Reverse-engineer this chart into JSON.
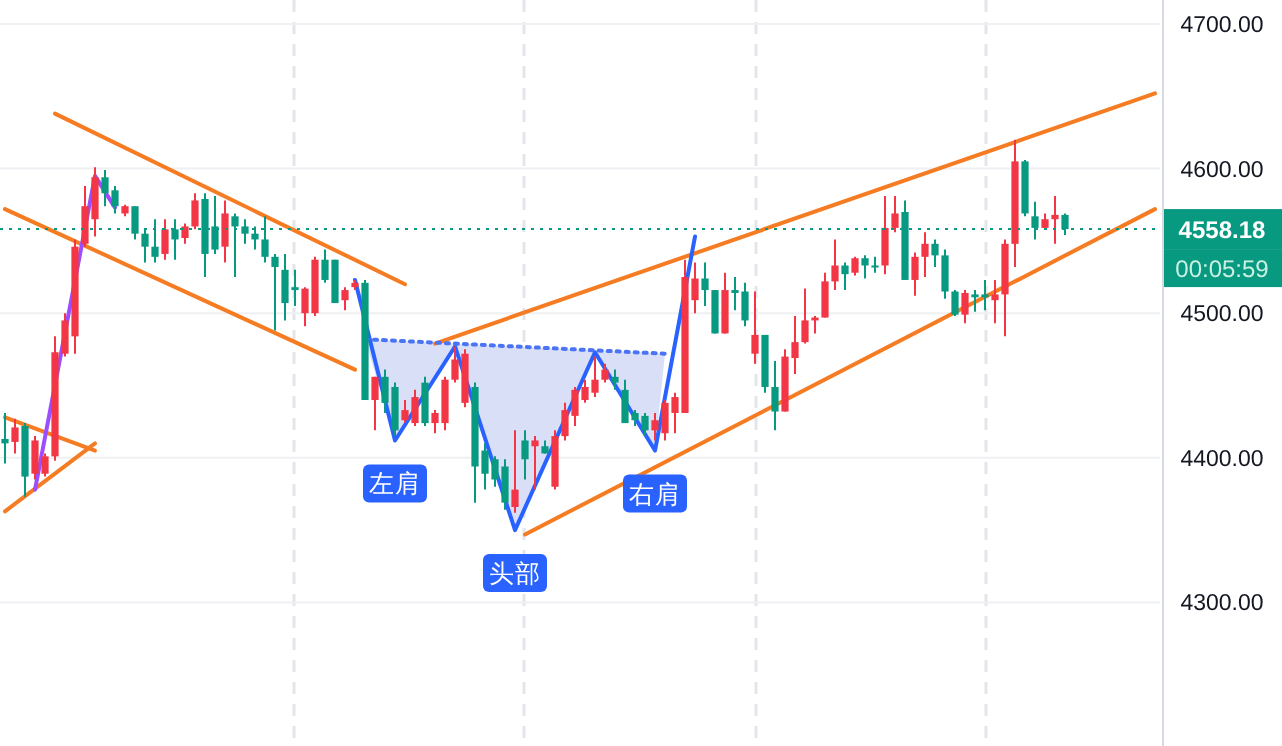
{
  "chart_data": {
    "type": "candlestick",
    "categories": [
      null,
      null,
      null,
      null,
      null,
      null,
      null,
      null,
      null,
      null,
      null,
      null,
      null,
      null,
      null,
      null,
      null,
      null,
      null,
      null,
      null,
      null,
      null,
      null,
      null,
      null,
      null,
      null,
      null,
      null,
      null,
      null,
      null,
      null,
      null,
      null,
      null,
      null,
      null,
      null,
      null,
      null,
      null,
      null,
      null,
      null,
      null,
      null,
      null,
      null,
      null,
      null,
      null,
      null,
      null,
      null,
      null,
      null,
      null,
      null,
      null,
      null,
      null,
      null,
      null,
      null,
      null,
      null,
      null,
      null,
      null,
      null,
      null,
      null,
      null,
      null,
      null,
      null,
      null,
      null,
      null,
      null,
      null,
      null,
      null,
      null,
      null,
      null,
      null,
      null,
      null,
      null,
      null,
      null,
      null,
      null,
      null,
      null,
      null,
      null,
      null,
      null,
      null,
      null,
      null,
      null,
      null,
      null,
      null,
      null,
      null,
      null,
      null,
      null,
      null,
      null
    ],
    "ohlc": [
      [
        4413,
        4431,
        4396,
        4410
      ],
      [
        4411,
        4427,
        4403,
        4421
      ],
      [
        4422,
        4424,
        4373,
        4387
      ],
      [
        4389,
        4415,
        4385,
        4412
      ],
      [
        4389,
        4403,
        4387,
        4401
      ],
      [
        4401,
        4484,
        4398,
        4473
      ],
      [
        4472,
        4500,
        4470,
        4495
      ],
      [
        4484,
        4551,
        4472,
        4546
      ],
      [
        4548,
        4588,
        4546,
        4574
      ],
      [
        4565,
        4601,
        4553,
        4594
      ],
      [
        4594,
        4599,
        4574,
        4583
      ],
      [
        4585,
        4588,
        4569,
        4574
      ],
      [
        4569,
        4575,
        4567,
        4574
      ],
      [
        4574,
        4574,
        4551,
        4555
      ],
      [
        4555,
        4558,
        4535,
        4546
      ],
      [
        4546,
        4565,
        4535,
        4539
      ],
      [
        4541,
        4565,
        4537,
        4558
      ],
      [
        4558,
        4565,
        4537,
        4551
      ],
      [
        4552,
        4562,
        4548,
        4560
      ],
      [
        4560,
        4583,
        4558,
        4578
      ],
      [
        4579,
        4583,
        4525,
        4541
      ],
      [
        4560,
        4581,
        4541,
        4544
      ],
      [
        4546,
        4578,
        4535,
        4569
      ],
      [
        4567,
        4569,
        4525,
        4560
      ],
      [
        4560,
        4565,
        4548,
        4555
      ],
      [
        4555,
        4560,
        4544,
        4551
      ],
      [
        4551,
        4567,
        4535,
        4539
      ],
      [
        4539,
        4541,
        4488,
        4532
      ],
      [
        4530,
        4541,
        4495,
        4507
      ],
      [
        4518,
        4530,
        4505,
        4516
      ],
      [
        4500,
        4518,
        4491,
        4517
      ],
      [
        4500,
        4539,
        4498,
        4537
      ],
      [
        4537,
        4544,
        4521,
        4523
      ],
      [
        4537,
        4537,
        4507,
        4507
      ],
      [
        4509,
        4518,
        4502,
        4516
      ],
      [
        4518,
        4523,
        4516,
        4521
      ],
      [
        4521,
        4523,
        4440,
        4440
      ],
      [
        4440,
        4456,
        4419,
        4456
      ],
      [
        4456,
        4461,
        4431,
        4438
      ],
      [
        4449,
        4452,
        4415,
        4419
      ],
      [
        4426,
        4440,
        4424,
        4433
      ],
      [
        4424,
        4447,
        4422,
        4442
      ],
      [
        4452,
        4456,
        4422,
        4424
      ],
      [
        4424,
        4433,
        4417,
        4431
      ],
      [
        4424,
        4456,
        4419,
        4454
      ],
      [
        4454,
        4477,
        4452,
        4468
      ],
      [
        4438,
        4475,
        4435,
        4472
      ],
      [
        4449,
        4452,
        4369,
        4394
      ],
      [
        4405,
        4410,
        4378,
        4389
      ],
      [
        4399,
        4401,
        4380,
        4385
      ],
      [
        4394,
        4399,
        4364,
        4369
      ],
      [
        4366,
        4419,
        4362,
        4378
      ],
      [
        4412,
        4419,
        4385,
        4399
      ],
      [
        4408,
        4415,
        4378,
        4412
      ],
      [
        4408,
        4412,
        4403,
        4403
      ],
      [
        4380,
        4419,
        4378,
        4415
      ],
      [
        4415,
        4438,
        4412,
        4433
      ],
      [
        4429,
        4449,
        4422,
        4447
      ],
      [
        4440,
        4454,
        4438,
        4449
      ],
      [
        4445,
        4470,
        4442,
        4454
      ],
      [
        4454,
        4465,
        4452,
        4461
      ],
      [
        4456,
        4461,
        4447,
        4452
      ],
      [
        4447,
        4454,
        4424,
        4424
      ],
      [
        4431,
        4433,
        4422,
        4426
      ],
      [
        4429,
        4431,
        4415,
        4419
      ],
      [
        4419,
        4431,
        4412,
        4426
      ],
      [
        4417,
        4440,
        4412,
        4438
      ],
      [
        4431,
        4445,
        4417,
        4442
      ],
      [
        4431,
        4537,
        4431,
        4525
      ],
      [
        4509,
        4535,
        4500,
        4524
      ],
      [
        4524,
        4535,
        4505,
        4516
      ],
      [
        4516,
        4516,
        4486,
        4486
      ],
      [
        4486,
        4528,
        4486,
        4516
      ],
      [
        4516,
        4525,
        4502,
        4514
      ],
      [
        4515,
        4521,
        4491,
        4495
      ],
      [
        4472,
        4515,
        4465,
        4485
      ],
      [
        4485,
        4485,
        4445,
        4449
      ],
      [
        4449,
        4467,
        4419,
        4432
      ],
      [
        4432,
        4475,
        4432,
        4470
      ],
      [
        4469,
        4498,
        4458,
        4480
      ],
      [
        4480,
        4517,
        4479,
        4495
      ],
      [
        4495,
        4498,
        4486,
        4497
      ],
      [
        4497,
        4528,
        4497,
        4522
      ],
      [
        4522,
        4551,
        4516,
        4533
      ],
      [
        4533,
        4535,
        4516,
        4527
      ],
      [
        4528,
        4539,
        4526,
        4538
      ],
      [
        4538,
        4540,
        4524,
        4533
      ],
      [
        4533,
        4539,
        4528,
        4532
      ],
      [
        4533,
        4581,
        4527,
        4559
      ],
      [
        4559,
        4581,
        4556,
        4569
      ],
      [
        4570,
        4578,
        4523,
        4523
      ],
      [
        4523,
        4542,
        4512,
        4539
      ],
      [
        4539,
        4556,
        4525,
        4548
      ],
      [
        4548,
        4551,
        4532,
        4540
      ],
      [
        4540,
        4544,
        4510,
        4515
      ],
      [
        4515,
        4516,
        4498,
        4499
      ],
      [
        4499,
        4516,
        4493,
        4514
      ],
      [
        4513,
        4516,
        4501,
        4511
      ],
      [
        4513,
        4523,
        4502,
        4511
      ],
      [
        4509,
        4523,
        4493,
        4513
      ],
      [
        4513,
        4551,
        4484,
        4548
      ],
      [
        4548,
        4620,
        4532,
        4605
      ],
      [
        4605,
        4606,
        4567,
        4569
      ],
      [
        4567,
        4577,
        4551,
        4559
      ],
      [
        4559,
        4569,
        4558,
        4565
      ],
      [
        4565,
        4581,
        4548,
        4568
      ],
      [
        4568,
        4569,
        4554,
        4558.18
      ],
      null,
      null,
      null,
      null,
      null,
      null,
      null,
      null,
      null
    ],
    "colors": [
      "#089981",
      "#f23645",
      "#089981",
      "#f23645",
      "#f23645",
      "#f23645",
      "#f23645",
      "#f23645",
      "#f23645",
      "#f23645",
      "#089981",
      "#089981",
      "#f23645",
      "#089981",
      "#089981",
      "#089981",
      "#f23645",
      "#089981",
      "#f23645",
      "#f23645",
      "#089981",
      "#089981",
      "#f23645",
      "#089981",
      "#089981",
      "#089981",
      "#089981",
      "#089981",
      "#089981",
      "#089981",
      "#f23645",
      "#f23645",
      "#089981",
      "#089981",
      "#f23645",
      "#f23645",
      "#089981",
      "#f23645",
      "#089981",
      "#089981",
      "#f23645",
      "#f23645",
      "#089981",
      "#f23645",
      "#f23645",
      "#f23645",
      "#f23645",
      "#089981",
      "#089981",
      "#089981",
      "#089981",
      "#f23645",
      "#089981",
      "#f23645",
      "#089981",
      "#f23645",
      "#f23645",
      "#f23645",
      "#f23645",
      "#f23645",
      "#f23645",
      "#089981",
      "#089981",
      "#089981",
      "#089981",
      "#f23645",
      "#f23645",
      "#f23645",
      "#f23645",
      "#f23645",
      "#089981",
      "#089981",
      "#f23645",
      "#089981",
      "#089981",
      "#f23645",
      "#089981",
      "#089981",
      "#f23645",
      "#f23645",
      "#f23645",
      "#f23645",
      "#f23645",
      "#f23645",
      "#089981",
      "#f23645",
      "#089981",
      "#089981",
      "#f23645",
      "#f23645",
      "#089981",
      "#f23645",
      "#f23645",
      "#089981",
      "#089981",
      "#089981",
      "#f23645",
      "#089981",
      "#089981",
      "#f23645",
      "#f23645",
      "#f23645",
      "#089981",
      "#089981",
      "#f23645",
      "#f23645",
      "#089981",
      null,
      null,
      null,
      null,
      null,
      null,
      null,
      null,
      null
    ],
    "series": [
      {
        "type": "line",
        "color": "#f57c22",
        "values": [
          null,
          null,
          null,
          null,
          null,
          4638,
          null,
          null,
          null,
          null,
          null,
          null,
          null,
          null,
          null,
          null,
          null,
          null,
          null,
          null,
          null,
          null,
          null,
          null,
          null,
          null,
          null,
          null,
          null,
          null,
          null,
          null,
          null,
          null,
          null,
          null,
          null,
          null,
          null,
          null,
          4520,
          null,
          null,
          null,
          null,
          null,
          null,
          null,
          null,
          null,
          null,
          null,
          null,
          null,
          null,
          null,
          null,
          null,
          null,
          null,
          null,
          null,
          null,
          null,
          null,
          null,
          null,
          null,
          null,
          null,
          null,
          null,
          null,
          null,
          null,
          null,
          null,
          null,
          null,
          null,
          null,
          null,
          null,
          null,
          null,
          null,
          null,
          null,
          null,
          null,
          null,
          null,
          null,
          null,
          null,
          null,
          null,
          null,
          null,
          null,
          null,
          null,
          null,
          null,
          null,
          null,
          null,
          null,
          null,
          null,
          null,
          null,
          null,
          null,
          null,
          null
        ]
      },
      {
        "type": "line",
        "color": "#f57c22",
        "values": [
          4572,
          null,
          null,
          null,
          null,
          null,
          null,
          null,
          null,
          null,
          null,
          null,
          null,
          null,
          null,
          null,
          null,
          null,
          null,
          null,
          null,
          null,
          null,
          null,
          null,
          null,
          null,
          null,
          null,
          null,
          null,
          null,
          null,
          null,
          null,
          4461,
          null,
          null,
          null,
          null,
          null,
          null,
          null,
          null,
          null,
          null,
          null,
          null,
          null,
          null,
          null,
          null,
          null,
          null,
          null,
          null,
          null,
          null,
          null,
          null,
          null,
          null,
          null,
          null,
          null,
          null,
          null,
          null,
          null,
          null,
          null,
          null,
          null,
          null,
          null,
          null,
          null,
          null,
          null,
          null,
          null,
          null,
          null,
          null,
          null,
          null,
          null,
          null,
          null,
          null,
          null,
          null,
          null,
          null,
          null,
          null,
          null,
          null,
          null,
          null,
          null,
          null,
          null,
          null,
          null,
          null,
          null,
          null,
          null,
          null,
          null,
          null,
          null,
          null,
          null,
          null
        ]
      },
      {
        "type": "line",
        "color": "#f57c22",
        "values": [
          4428,
          null,
          null,
          null,
          null,
          null,
          null,
          null,
          null,
          4405,
          null,
          null,
          null,
          null,
          null,
          null,
          null,
          null,
          null,
          null,
          null,
          null,
          null,
          null,
          null,
          null,
          null,
          null,
          null,
          null,
          null,
          null,
          null,
          null,
          null,
          null,
          null,
          null,
          null,
          null,
          null,
          null,
          null,
          null,
          null,
          null,
          null,
          null,
          null,
          null,
          null,
          null,
          null,
          null,
          null,
          null,
          null,
          null,
          null,
          null,
          null,
          null,
          null,
          null,
          null,
          null,
          null,
          null,
          null,
          null,
          null,
          null,
          null,
          null,
          null,
          null,
          null,
          null,
          null,
          null,
          null,
          null,
          null,
          null,
          null,
          null,
          null,
          null,
          null,
          null,
          null,
          null,
          null,
          null,
          null,
          null,
          null,
          null,
          null,
          null,
          null,
          null,
          null,
          null,
          null,
          null,
          null,
          null,
          null,
          null,
          null,
          null,
          null,
          null,
          null,
          null
        ]
      },
      {
        "type": "line",
        "color": "#f57c22",
        "values": [
          4363,
          null,
          null,
          null,
          null,
          null,
          null,
          null,
          null,
          4410,
          null,
          null,
          null,
          null,
          null,
          null,
          null,
          null,
          null,
          null,
          null,
          null,
          null,
          null,
          null,
          null,
          null,
          null,
          null,
          null,
          null,
          null,
          null,
          null,
          null,
          null,
          null,
          null,
          null,
          null,
          null,
          null,
          null,
          null,
          null,
          null,
          null,
          null,
          null,
          null,
          null,
          null,
          null,
          null,
          null,
          null,
          null,
          null,
          null,
          null,
          null,
          null,
          null,
          null,
          null,
          null,
          null,
          null,
          null,
          null,
          null,
          null,
          null,
          null,
          null,
          null,
          null,
          null,
          null,
          null,
          null,
          null,
          null,
          null,
          null,
          null,
          null,
          null,
          null,
          null,
          null,
          null,
          null,
          null,
          null,
          null,
          null,
          null,
          null,
          null,
          null,
          null,
          null,
          null,
          null,
          null,
          null,
          null,
          null,
          null,
          null,
          null,
          null,
          null,
          null,
          null
        ]
      },
      {
        "type": "line",
        "color": "#f57c22",
        "values": [
          null,
          null,
          null,
          null,
          null,
          null,
          null,
          null,
          null,
          null,
          null,
          null,
          null,
          null,
          null,
          null,
          null,
          null,
          null,
          null,
          null,
          null,
          null,
          null,
          null,
          null,
          null,
          null,
          null,
          null,
          null,
          null,
          null,
          null,
          null,
          null,
          null,
          null,
          null,
          null,
          null,
          null,
          null,
          4479,
          null,
          null,
          null,
          null,
          null,
          null,
          null,
          null,
          null,
          null,
          null,
          null,
          null,
          null,
          null,
          null,
          null,
          null,
          null,
          null,
          null,
          null,
          null,
          null,
          null,
          null,
          null,
          null,
          null,
          null,
          null,
          null,
          null,
          null,
          null,
          null,
          null,
          null,
          null,
          null,
          null,
          null,
          null,
          null,
          null,
          null,
          null,
          null,
          null,
          null,
          null,
          null,
          null,
          null,
          null,
          null,
          null,
          null,
          null,
          null,
          null,
          null,
          null,
          null,
          null,
          null,
          null,
          null,
          null,
          null,
          null,
          4652
        ]
      },
      {
        "type": "line",
        "color": "#f57c22",
        "values": [
          null,
          null,
          null,
          null,
          null,
          null,
          null,
          null,
          null,
          null,
          null,
          null,
          null,
          null,
          null,
          null,
          null,
          null,
          null,
          null,
          null,
          null,
          null,
          null,
          null,
          null,
          null,
          null,
          null,
          null,
          null,
          null,
          null,
          null,
          null,
          null,
          null,
          null,
          null,
          null,
          null,
          null,
          null,
          null,
          null,
          null,
          null,
          null,
          null,
          null,
          null,
          null,
          4347,
          null,
          null,
          null,
          null,
          null,
          null,
          null,
          null,
          null,
          null,
          null,
          null,
          null,
          null,
          null,
          null,
          null,
          null,
          null,
          null,
          null,
          null,
          null,
          null,
          null,
          null,
          null,
          null,
          null,
          null,
          null,
          null,
          null,
          null,
          null,
          null,
          null,
          null,
          null,
          null,
          null,
          null,
          null,
          null,
          null,
          null,
          null,
          null,
          null,
          null,
          null,
          null,
          null,
          null,
          null,
          null,
          null,
          null,
          null,
          null,
          null,
          null,
          4572
        ]
      },
      {
        "type": "line",
        "color": "#9b4dff",
        "values": [
          null,
          null,
          null,
          4378,
          null,
          null,
          null,
          null,
          null,
          4595,
          null,
          4573,
          null,
          null,
          null,
          null,
          null,
          null,
          null,
          null,
          null,
          null,
          null,
          null,
          null,
          null,
          null,
          null,
          null,
          null,
          null,
          null,
          null,
          null,
          null,
          null,
          null,
          null,
          null,
          null,
          null,
          null,
          null,
          null,
          null,
          null,
          null,
          null,
          null,
          null,
          null,
          null,
          null,
          null,
          null,
          null,
          null,
          null,
          null,
          null,
          null,
          null,
          null,
          null,
          null,
          null,
          null,
          null,
          null,
          null,
          null,
          null,
          null,
          null,
          null,
          null,
          null,
          null,
          null,
          null,
          null,
          null,
          null,
          null,
          null,
          null,
          null,
          null,
          null,
          null,
          null,
          null,
          null,
          null,
          null,
          null,
          null,
          null,
          null,
          null,
          null,
          null,
          null,
          null,
          null,
          null,
          null,
          null,
          null,
          null,
          null,
          null,
          null,
          null,
          null,
          null
        ]
      },
      {
        "type": "line",
        "color": "#2962ff",
        "values": [
          null,
          null,
          null,
          null,
          null,
          null,
          null,
          null,
          null,
          null,
          null,
          null,
          null,
          null,
          null,
          null,
          null,
          null,
          null,
          null,
          null,
          null,
          null,
          null,
          null,
          null,
          null,
          null,
          null,
          null,
          null,
          null,
          null,
          null,
          null,
          4523,
          null,
          null,
          null,
          4412,
          null,
          null,
          null,
          null,
          null,
          4477,
          null,
          null,
          null,
          null,
          null,
          4350,
          null,
          null,
          null,
          null,
          null,
          null,
          null,
          4473,
          null,
          null,
          null,
          null,
          null,
          4405,
          null,
          null,
          null,
          4553,
          null,
          null,
          null,
          null,
          null,
          null,
          null,
          null,
          null,
          null,
          null,
          null,
          null,
          null,
          null,
          null,
          null,
          null,
          null,
          null,
          null,
          null,
          null,
          null,
          null,
          null,
          null,
          null,
          null,
          null,
          null,
          null,
          null,
          null,
          null,
          null,
          null,
          null,
          null,
          null,
          null,
          null,
          null,
          null,
          null,
          null
        ]
      },
      {
        "type": "line",
        "color": "#4a74f5",
        "line_style": "dotted",
        "values": [
          null,
          null,
          null,
          null,
          null,
          null,
          null,
          null,
          null,
          null,
          null,
          null,
          null,
          null,
          null,
          null,
          null,
          null,
          null,
          null,
          null,
          null,
          null,
          null,
          null,
          null,
          null,
          null,
          null,
          null,
          null,
          null,
          null,
          null,
          null,
          null,
          4482,
          null,
          null,
          null,
          null,
          null,
          null,
          null,
          null,
          null,
          null,
          null,
          null,
          null,
          null,
          null,
          null,
          null,
          null,
          null,
          null,
          null,
          null,
          null,
          null,
          null,
          null,
          null,
          null,
          null,
          4472,
          null,
          null,
          null,
          null,
          null,
          null,
          null,
          null,
          null,
          null,
          null,
          null,
          null,
          null,
          null,
          null,
          null,
          null,
          null,
          null,
          null,
          null,
          null,
          null,
          null,
          null,
          null,
          null,
          null,
          null,
          null,
          null,
          null,
          null,
          null,
          null,
          null,
          null,
          null,
          null,
          null,
          null,
          null,
          null,
          null,
          null,
          null,
          null,
          null
        ]
      }
    ],
    "ylim": [
      4200.7,
      4716.6
    ],
    "yticks": [
      {
        "value": 4300,
        "label": "4300.00"
      },
      {
        "value": 4400,
        "label": "4400.00"
      },
      {
        "value": 4500,
        "label": "4500.00"
      },
      {
        "value": 4600,
        "label": "4600.00"
      },
      {
        "value": 4700,
        "label": "4700.00"
      }
    ],
    "tick_labels": "y",
    "grid": "y",
    "ref_lines": [
      {
        "axis": "y",
        "value": 4558.18,
        "label": "4558.18",
        "color": "#089981",
        "line_style": "dotted"
      }
    ],
    "annotations": [
      "左肩",
      "头部",
      "右肩",
      "00:05:59"
    ]
  }
}
